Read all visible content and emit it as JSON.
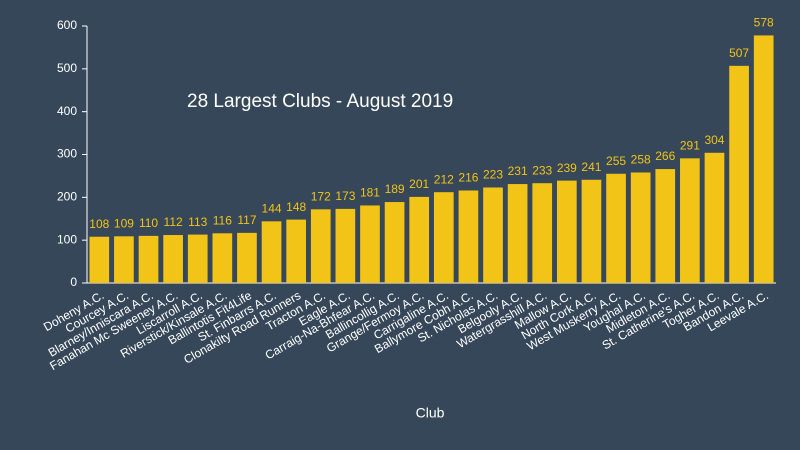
{
  "chart_data": {
    "type": "bar",
    "title": "28 Largest Clubs - August 2019",
    "x_label": "Club",
    "categories": [
      "Doheny A.C.",
      "Courcey A.C.",
      "Blarney/Inniscara A.C.",
      "Fanahan Mc Sweeney A.C.",
      "Liscarroll A.C.",
      "Riverstick/Kinsale A.C.",
      "Ballintotis Fit4Life",
      "St. Finbarrs A.C.",
      "Clonakilty Road Runners",
      "Tracton A.C.",
      "Eagle A.C.",
      "Carraig-Na-Bhfear A.C.",
      "Ballincollig A.C.",
      "Grange/Fermoy A.C.",
      "Carrigaline A.C.",
      "Ballymore Cobh A.C.",
      "St. Nicholas A.C.",
      "Belgooly A.C.",
      "Watergrasshill A.C.",
      "Mallow A.C.",
      "North Cork A.C.",
      "West Muskerry A.C.",
      "Youghal A.C.",
      "Midleton A.C.",
      "St. Catherine's A.C.",
      "Togher A.C.",
      "Bandon A.C.",
      "Leevale A.C."
    ],
    "values": [
      108,
      109,
      110,
      112,
      113,
      116,
      117,
      144,
      148,
      172,
      173,
      181,
      189,
      201,
      212,
      216,
      223,
      231,
      233,
      239,
      241,
      255,
      258,
      266,
      291,
      304,
      507,
      578
    ],
    "color": "#f2c417",
    "ylim": [
      0,
      600
    ],
    "yticks": [
      0,
      100,
      200,
      300,
      400,
      500,
      600
    ],
    "grid": false
  }
}
